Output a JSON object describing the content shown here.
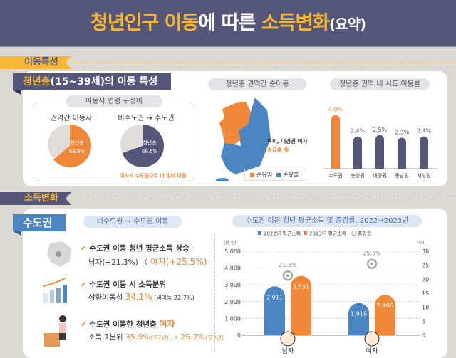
{
  "header": {
    "title_part1": "청년인구 이동",
    "title_part2": "에 따른 ",
    "title_part3": "소득변화",
    "title_part4": "(요약)"
  },
  "colors": {
    "navy": "#545779",
    "orange": "#f0883a",
    "blue": "#4b86c3",
    "yellow": "#f7b733",
    "gray": "#e0ddd8"
  },
  "section1": {
    "label": "이동특성",
    "tag_highlight": "청년층",
    "tag_rest": "(15~39세)의 이동 특성",
    "age_box": {
      "title": "이동자 연령 구성비",
      "pies": [
        {
          "label": "권역간 이동자",
          "slice_label": "청년층",
          "value": 63.9,
          "value_text": "63.9%",
          "color": "#f0883a"
        },
        {
          "label": "비수도권 → 수도권",
          "slice_label": "청년층",
          "value": 69.6,
          "value_text": "69.6%",
          "color": "#545779"
        }
      ],
      "note": "여자가 수도권으로 더 많이 이동"
    },
    "map": {
      "title": "청년층 권역간 순이동",
      "annotation_line1": "특히, 대경권 여자",
      "annotation_line2": "순유출 多",
      "legend": [
        {
          "label": "순유입",
          "color": "#f0883a"
        },
        {
          "label": "순유출",
          "color": "#4b86c3"
        }
      ]
    },
    "bars": {
      "title": "청년층 권역 내 시도 이동률"
    }
  },
  "chart_data": [
    {
      "type": "bar",
      "title": "청년층 권역 내 시도 이동률",
      "categories": [
        "수도권",
        "충청권",
        "대경권",
        "동남권",
        "서남권"
      ],
      "values": [
        4.0,
        2.4,
        2.5,
        2.3,
        2.4
      ],
      "value_labels": [
        "4.0%",
        "2.4%",
        "2.5%",
        "2.3%",
        "2.4%"
      ],
      "highlight_color": "#f0883a",
      "color": "#545779",
      "ylim": [
        0,
        4.5
      ]
    },
    {
      "type": "bar",
      "title": "수도권 이동 청년 평균소득 및 증감률, 2022→2023년",
      "categories": [
        "남자",
        "여자"
      ],
      "series": [
        {
          "name": "2022년 평균소득",
          "values": [
            2911,
            1918
          ],
          "labels": [
            "2,911",
            "1,918"
          ],
          "color": "#4b86c3"
        },
        {
          "name": "2023년 평균소득",
          "values": [
            3531,
            2406
          ],
          "labels": [
            "3,531",
            "2,406"
          ],
          "color": "#f0883a"
        },
        {
          "name": "증감률",
          "values": [
            21.3,
            25.5
          ],
          "labels": [
            "21.3%",
            "25.5%"
          ],
          "axis": "right"
        }
      ],
      "ylabel_left": "(만 원)",
      "ylabel_right": "(%)",
      "ylim_left": [
        0,
        5000
      ],
      "ylim_right": [
        0,
        30
      ],
      "yticks_left": [
        "0",
        "1,000",
        "2,000",
        "3,000",
        "4,000",
        "5,000"
      ],
      "yticks_right": [
        "0",
        "5",
        "10",
        "15",
        "20",
        "25",
        "30"
      ],
      "grid": true,
      "legend": "top"
    }
  ],
  "section2": {
    "label": "소득변화",
    "tag": "수도권",
    "subtitle": "비수도권 → 수도권 이동",
    "items": [
      {
        "line1": "수도권 이동 청년 평균소득 상승",
        "line2a": "남자(+21.3%) 〈 ",
        "line2b": "여자(+25.5%)"
      },
      {
        "line1": "수도권 이동 시 소득분위",
        "line2a": "상향이동성 ",
        "line2b": "34.1%",
        "line2c": " (비이동 22.7%)"
      },
      {
        "line1a": "수도권 이동한 청년층 ",
        "line1b": "여자",
        "line2a": "소득 1분위 ",
        "line2b": "35.9%",
        "line2c": "('22년)",
        "line2d": " → 25.2%",
        "line2e": "('23년)"
      }
    ]
  }
}
